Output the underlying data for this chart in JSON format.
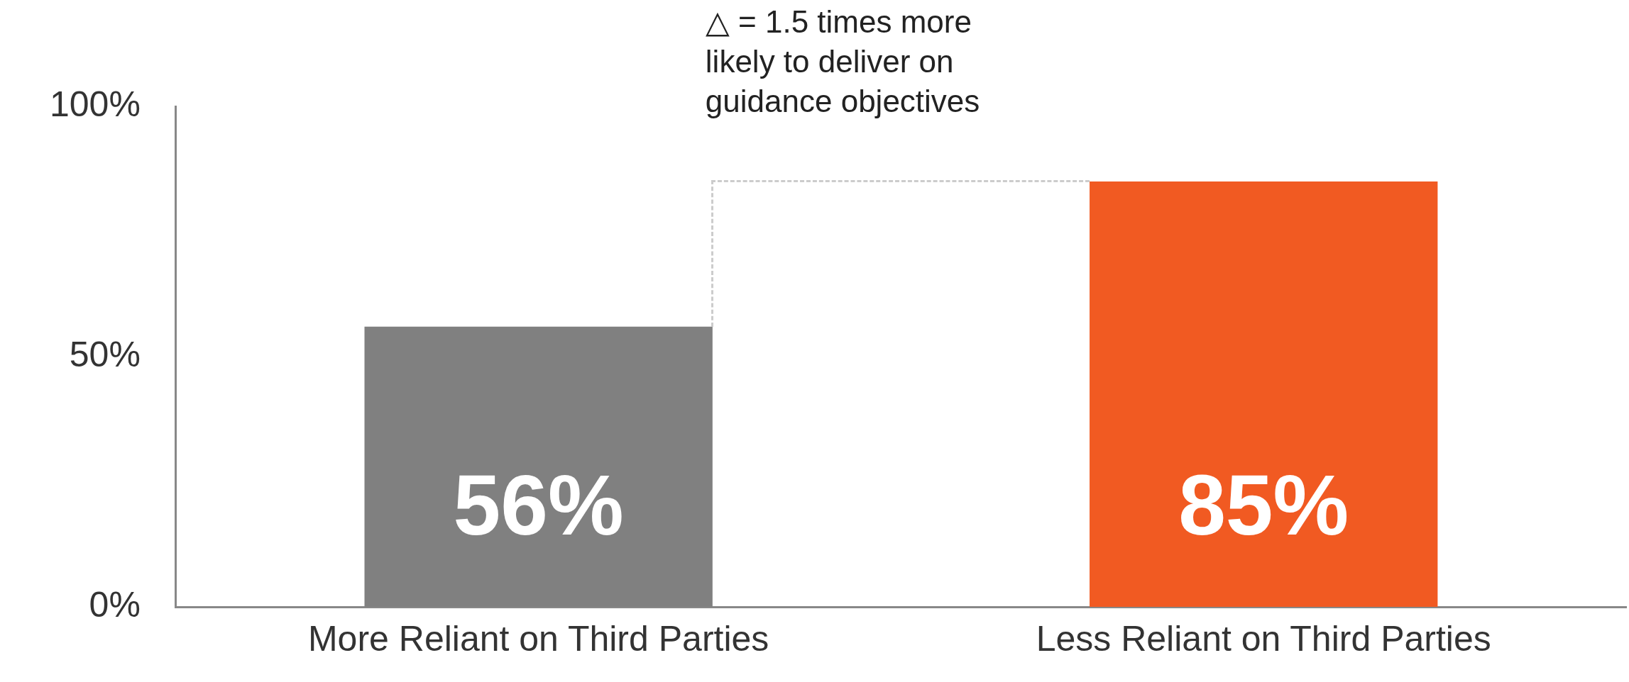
{
  "chart_data": {
    "type": "bar",
    "categories": [
      "More Reliant on Third Parties",
      "Less Reliant on Third Parties"
    ],
    "values": [
      56,
      85
    ],
    "colors": [
      "#808080",
      "#f15a22"
    ],
    "ylim": [
      0,
      100
    ],
    "yticks": [
      {
        "value": 0,
        "label": "0%"
      },
      {
        "value": 50,
        "label": "50%"
      },
      {
        "value": 100,
        "label": "100%"
      }
    ],
    "value_labels": [
      "56%",
      "85%"
    ],
    "grid": false,
    "legend": false,
    "annotations": [
      "△ = 1.5 times more likely to deliver on guidance objectives"
    ]
  }
}
